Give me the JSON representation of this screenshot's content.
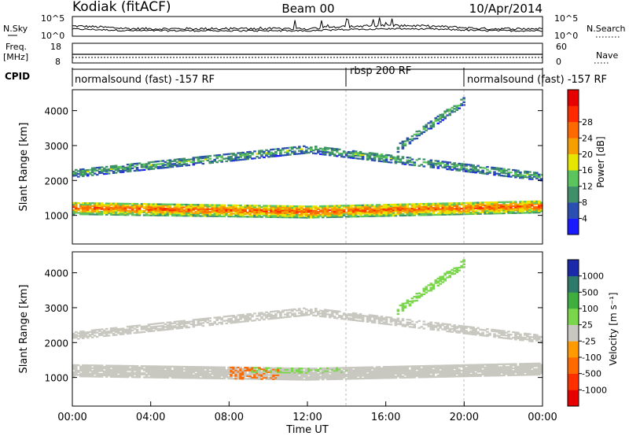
{
  "header": {
    "station": "Kodiak (fitACF)",
    "beam": "Beam 00",
    "date": "10/Apr/2014"
  },
  "noise_panel": {
    "left_label": "N.Sky",
    "right_label": "N.Search",
    "top_tick": "10^5",
    "bottom_tick": "10^0"
  },
  "freq_panel": {
    "left_label_1": "Freq.",
    "left_label_2": "[MHz]",
    "right_label": "Nave",
    "left_top_tick": "18",
    "left_bottom_tick": "8",
    "right_top_tick": "60",
    "right_bottom_tick": "0"
  },
  "cpid": {
    "label": "CPID",
    "segments": [
      {
        "name": "normalsound (fast) -157 RF",
        "start_h": 0,
        "end_h": 14
      },
      {
        "name": "rbsp 200 RF",
        "start_h": 14,
        "end_h": 20
      },
      {
        "name": "normalsound (fast) -157 RF",
        "start_h": 20,
        "end_h": 24
      }
    ]
  },
  "power_panel": {
    "ylabel": "Slant Range [km]",
    "yticks": [
      "1000",
      "2000",
      "3000",
      "4000"
    ],
    "colorbar_label": "Power [dB]",
    "colorbar_ticks": [
      "4",
      "8",
      "12",
      "16",
      "20",
      "24",
      "28"
    ],
    "colors": [
      "#1a1aff",
      "#2b4fb0",
      "#3f8f6a",
      "#5cc45c",
      "#e6e600",
      "#f5a000",
      "#ff6a00",
      "#ff2a00",
      "#e60000"
    ]
  },
  "velocity_panel": {
    "ylabel": "Slant Range [km]",
    "yticks": [
      "1000",
      "2000",
      "3000",
      "4000"
    ],
    "colorbar_label": "Velocity [m s⁻¹]",
    "colorbar_ticks": [
      "1000",
      "500",
      "100",
      "25",
      "-25",
      "-100",
      "-500",
      "-1000"
    ],
    "colors": [
      "#1a2aa8",
      "#2e7a6a",
      "#3fae3f",
      "#7ad64a",
      "#c8c8c0",
      "#ff9a00",
      "#ff6a00",
      "#ff3000",
      "#e60000"
    ]
  },
  "time_axis": {
    "xlabel": "Time UT",
    "ticks": [
      "00:00",
      "04:00",
      "08:00",
      "12:00",
      "16:00",
      "20:00",
      "00:00"
    ]
  },
  "chart_data": {
    "type": "heatmap",
    "title": "Kodiak (fitACF) Beam 00 10/Apr/2014",
    "xlabel": "Time UT",
    "ylabel": "Slant Range [km]",
    "xlim_hours": [
      0,
      24
    ],
    "ylim_km": [
      180,
      4600
    ],
    "power_range_db": [
      0,
      30
    ],
    "velocity_range_ms": [
      -1000,
      1000
    ],
    "echo_bands": [
      {
        "name": "main 1-hop band",
        "t_start": 0,
        "t_end": 24,
        "range_km_start": 1200,
        "range_km_mid": 1100,
        "range_km_end": 1250,
        "power_db": 24,
        "velocity_ms": 0
      },
      {
        "name": "upper band",
        "t_start": 0,
        "t_end": 24,
        "range_km_start": 2200,
        "range_km_mid": 2900,
        "range_km_end": 2100,
        "power_db": 10,
        "velocity_ms": 0
      },
      {
        "name": "rising evening band",
        "t_start": 16.5,
        "t_end": 20,
        "range_km_start": 2900,
        "range_km_end": 4300,
        "power_db": 10,
        "velocity_ms": 150
      }
    ]
  }
}
